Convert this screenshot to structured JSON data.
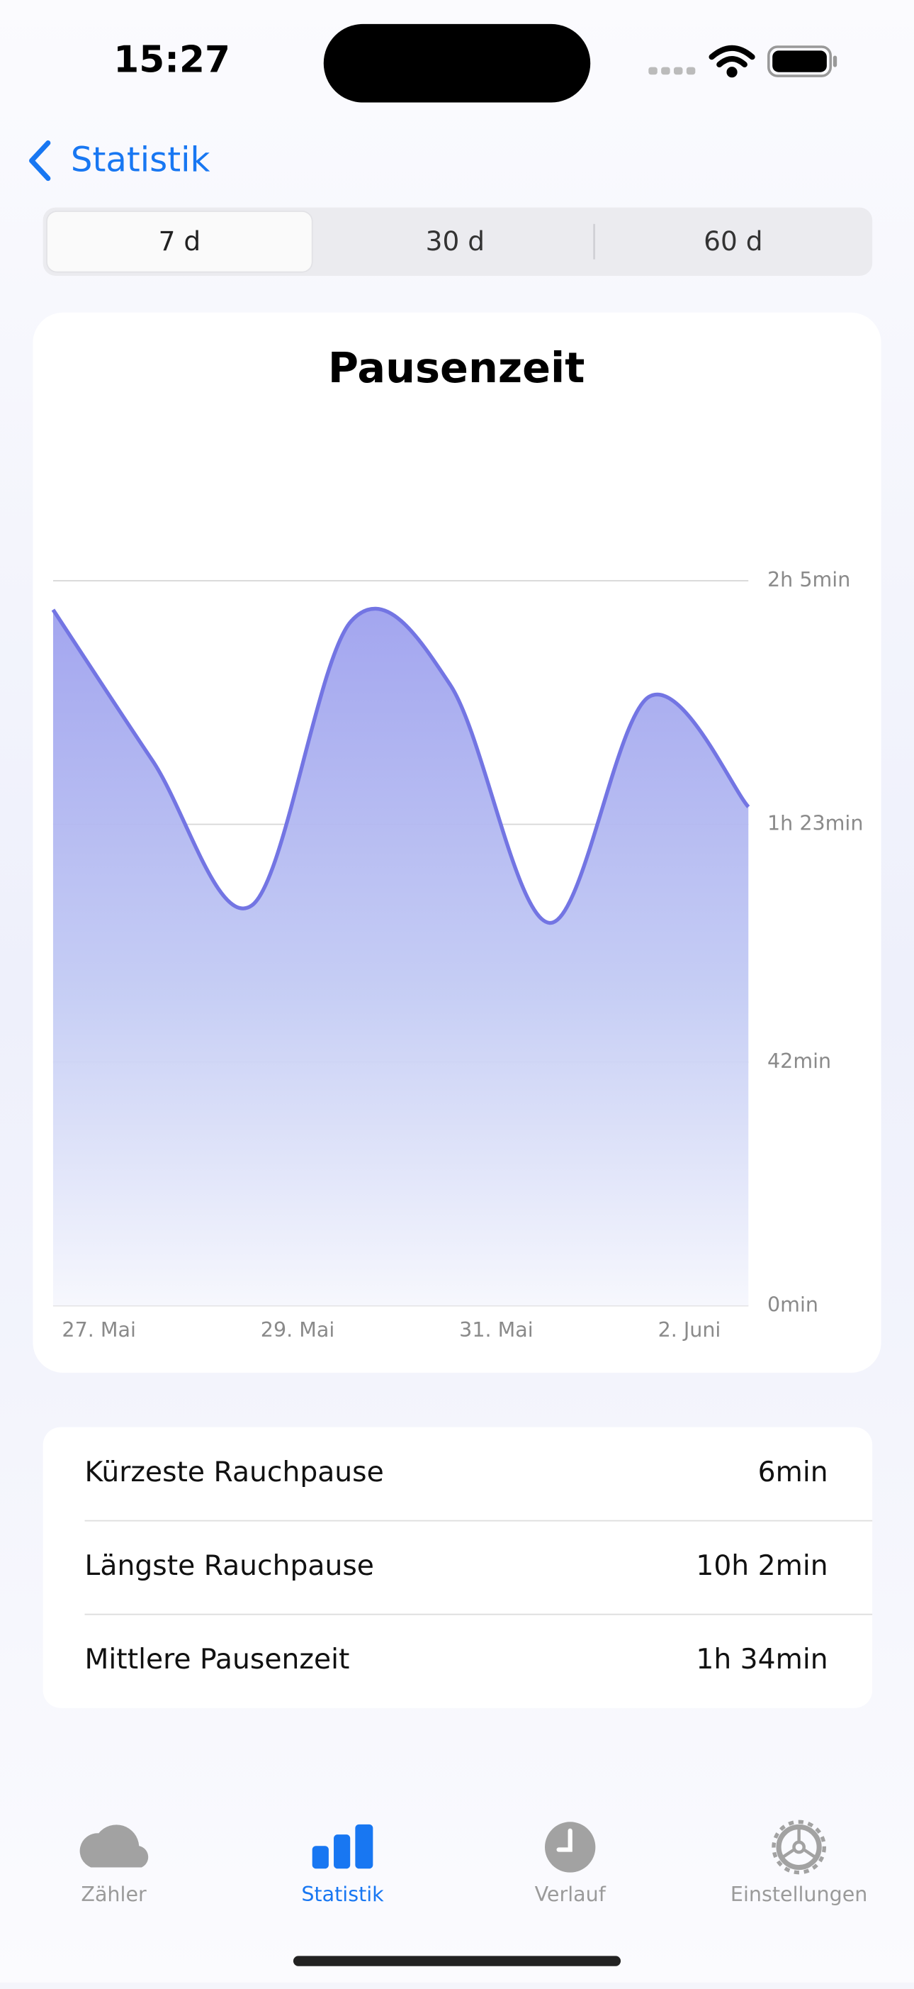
{
  "status_bar": {
    "time": "15:27"
  },
  "nav": {
    "back": "Statistik"
  },
  "segments": [
    "7 d",
    "30 d",
    "60 d"
  ],
  "chart_data": {
    "type": "area",
    "title": "Pausenzeit",
    "categories": [
      "27. Mai",
      null,
      "29. Mai",
      null,
      "31. Mai",
      null,
      "2. Juni",
      null
    ],
    "values": [
      120,
      94,
      69,
      118,
      107,
      66,
      105,
      86
    ],
    "color": "#7375e3",
    "ylim": [
      0,
      150
    ],
    "yticks": [
      {
        "value": 0,
        "label": "0min"
      },
      {
        "value": 42,
        "label": "42min"
      },
      {
        "value": 83,
        "label": "1h 23min"
      },
      {
        "value": 125,
        "label": "2h 5min"
      }
    ],
    "grid": true
  },
  "stats": [
    {
      "label": "Kürzeste Rauchpause",
      "value": "6min"
    },
    {
      "label": "Längste Rauchpause",
      "value": "10h 2min"
    },
    {
      "label": "Mittlere Pausenzeit",
      "value": "1h 34min"
    }
  ],
  "tab_bar": [
    "Zähler",
    "Statistik",
    "Verlauf",
    "Einstellungen"
  ]
}
